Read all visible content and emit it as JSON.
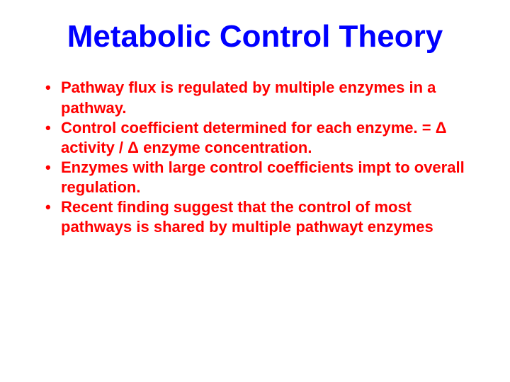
{
  "slide": {
    "title": "Metabolic Control Theory",
    "title_color": "#0000ff",
    "title_fontsize": 44,
    "bullet_color": "#ff0000",
    "bullet_fontsize": 22,
    "background_color": "#ffffff",
    "font_family": "Comic Sans MS",
    "bullets": [
      "Pathway flux is regulated by multiple enzymes in a pathway.",
      "Control coefficient determined for each enzyme. = Δ activity / Δ enzyme concentration.",
      "Enzymes with large control coefficients impt to overall regulation.",
      "Recent finding suggest that the control of most pathways is shared by multiple pathwayt enzymes"
    ]
  }
}
